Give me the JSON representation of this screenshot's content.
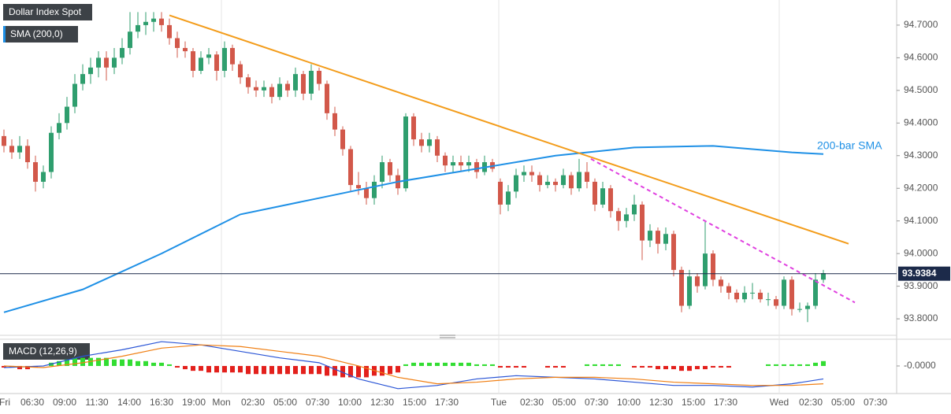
{
  "chart_data": {
    "type": "candlestick",
    "title": "Dollar Index Spot",
    "up_color": "#2f9e6e",
    "down_color": "#d2584a",
    "ylim": [
      93.764,
      94.777
    ],
    "yticks": [
      {
        "value": 94.7,
        "label": "94.7000"
      },
      {
        "value": 94.6,
        "label": "94.6000"
      },
      {
        "value": 94.5,
        "label": "94.5000"
      },
      {
        "value": 94.4,
        "label": "94.4000"
      },
      {
        "value": 94.3,
        "label": "94.3000"
      },
      {
        "value": 94.2,
        "label": "94.2000"
      },
      {
        "value": 94.1,
        "label": "94.1000"
      },
      {
        "value": 94.0,
        "label": "94.0000"
      },
      {
        "value": 93.9,
        "label": "93.9000"
      },
      {
        "value": 93.8,
        "label": "93.8000"
      }
    ],
    "last_price": {
      "value": 93.9384,
      "label": "93.9384"
    },
    "time_labels": [
      "Fri",
      "06:30",
      "09:00",
      "11:30",
      "14:00",
      "16:30",
      "19:00",
      "Mon",
      "02:30",
      "05:00",
      "07:30",
      "10:00",
      "12:30",
      "15:00",
      "17:30",
      "Tue",
      "02:30",
      "05:00",
      "07:30",
      "10:00",
      "12:30",
      "15:00",
      "17:30",
      "Wed",
      "02:30",
      "05:00",
      "07:30"
    ],
    "candles": [
      [
        94.36,
        94.38,
        94.31,
        94.33
      ],
      [
        94.33,
        94.35,
        94.29,
        94.31
      ],
      [
        94.31,
        94.36,
        94.29,
        94.33
      ],
      [
        94.33,
        94.35,
        94.26,
        94.28
      ],
      [
        94.28,
        94.3,
        94.19,
        94.22
      ],
      [
        94.22,
        94.27,
        94.2,
        94.25
      ],
      [
        94.25,
        94.39,
        94.23,
        94.37
      ],
      [
        94.37,
        94.43,
        94.35,
        94.4
      ],
      [
        94.4,
        94.48,
        94.38,
        94.45
      ],
      [
        94.45,
        94.55,
        94.43,
        94.52
      ],
      [
        94.52,
        94.58,
        94.5,
        94.55
      ],
      [
        94.55,
        94.6,
        94.52,
        94.57
      ],
      [
        94.57,
        94.62,
        94.54,
        94.6
      ],
      [
        94.6,
        94.62,
        94.53,
        94.57
      ],
      [
        94.57,
        94.63,
        94.55,
        94.6
      ],
      [
        94.6,
        94.66,
        94.58,
        94.63
      ],
      [
        94.63,
        94.74,
        94.61,
        94.68
      ],
      [
        94.68,
        94.74,
        94.66,
        94.7
      ],
      [
        94.7,
        94.74,
        94.67,
        94.71
      ],
      [
        94.71,
        94.74,
        94.68,
        94.72
      ],
      [
        94.72,
        94.74,
        94.68,
        94.7
      ],
      [
        94.7,
        94.72,
        94.64,
        94.66
      ],
      [
        94.66,
        94.68,
        94.6,
        94.63
      ],
      [
        94.63,
        94.65,
        94.6,
        94.62
      ],
      [
        94.62,
        94.63,
        94.54,
        94.56
      ],
      [
        94.56,
        94.62,
        94.55,
        94.6
      ],
      [
        94.6,
        94.63,
        94.58,
        94.61
      ],
      [
        94.61,
        94.62,
        94.53,
        94.56
      ],
      [
        94.56,
        94.65,
        94.54,
        94.63
      ],
      [
        94.63,
        94.64,
        94.56,
        94.58
      ],
      [
        94.58,
        94.59,
        94.52,
        94.54
      ],
      [
        94.54,
        94.55,
        94.49,
        94.51
      ],
      [
        94.51,
        94.53,
        94.48,
        94.5
      ],
      [
        94.5,
        94.53,
        94.48,
        94.51
      ],
      [
        94.51,
        94.52,
        94.46,
        94.48
      ],
      [
        94.48,
        94.54,
        94.47,
        94.52
      ],
      [
        94.52,
        94.53,
        94.48,
        94.5
      ],
      [
        94.5,
        94.57,
        94.48,
        94.55
      ],
      [
        94.55,
        94.56,
        94.47,
        94.49
      ],
      [
        94.49,
        94.58,
        94.47,
        94.56
      ],
      [
        94.56,
        94.57,
        94.5,
        94.52
      ],
      [
        94.52,
        94.53,
        94.41,
        94.43
      ],
      [
        94.43,
        94.45,
        94.36,
        94.38
      ],
      [
        94.38,
        94.39,
        94.3,
        94.32
      ],
      [
        94.32,
        94.33,
        94.19,
        94.21
      ],
      [
        94.21,
        94.25,
        94.18,
        94.2
      ],
      [
        94.2,
        94.22,
        94.15,
        94.17
      ],
      [
        94.17,
        94.24,
        94.15,
        94.22
      ],
      [
        94.22,
        94.3,
        94.2,
        94.28
      ],
      [
        94.28,
        94.29,
        94.22,
        94.24
      ],
      [
        94.24,
        94.26,
        94.18,
        94.2
      ],
      [
        94.2,
        94.43,
        94.19,
        94.42
      ],
      [
        94.42,
        94.43,
        94.33,
        94.35
      ],
      [
        94.35,
        94.37,
        94.31,
        94.33
      ],
      [
        94.33,
        94.37,
        94.31,
        94.35
      ],
      [
        94.35,
        94.36,
        94.28,
        94.3
      ],
      [
        94.3,
        94.31,
        94.25,
        94.27
      ],
      [
        94.27,
        94.3,
        94.25,
        94.28
      ],
      [
        94.28,
        94.3,
        94.25,
        94.27
      ],
      [
        94.27,
        94.3,
        94.25,
        94.28
      ],
      [
        94.28,
        94.29,
        94.23,
        94.25
      ],
      [
        94.25,
        94.3,
        94.24,
        94.28
      ],
      [
        94.28,
        94.29,
        94.25,
        94.26
      ],
      [
        94.22,
        94.23,
        94.12,
        94.15
      ],
      [
        94.15,
        94.21,
        94.13,
        94.19
      ],
      [
        94.19,
        94.26,
        94.17,
        94.24
      ],
      [
        94.24,
        94.27,
        94.22,
        94.25
      ],
      [
        94.25,
        94.27,
        94.22,
        94.24
      ],
      [
        94.24,
        94.25,
        94.19,
        94.21
      ],
      [
        94.21,
        94.24,
        94.2,
        94.22
      ],
      [
        94.22,
        94.23,
        94.19,
        94.21
      ],
      [
        94.21,
        94.26,
        94.2,
        94.24
      ],
      [
        94.24,
        94.25,
        94.18,
        94.2
      ],
      [
        94.2,
        94.29,
        94.19,
        94.25
      ],
      [
        94.25,
        94.28,
        94.2,
        94.22
      ],
      [
        94.22,
        94.23,
        94.13,
        94.15
      ],
      [
        94.15,
        94.22,
        94.14,
        94.2
      ],
      [
        94.2,
        94.21,
        94.11,
        94.13
      ],
      [
        94.13,
        94.14,
        94.07,
        94.1
      ],
      [
        94.1,
        94.14,
        94.08,
        94.12
      ],
      [
        94.12,
        94.18,
        94.1,
        94.15
      ],
      [
        94.15,
        94.16,
        93.98,
        94.04
      ],
      [
        94.04,
        94.09,
        94.02,
        94.07
      ],
      [
        94.07,
        94.08,
        94.0,
        94.03
      ],
      [
        94.03,
        94.08,
        94.01,
        94.06
      ],
      [
        94.06,
        94.07,
        93.93,
        93.95
      ],
      [
        93.95,
        93.96,
        93.82,
        93.84
      ],
      [
        93.84,
        93.95,
        93.83,
        93.93
      ],
      [
        93.93,
        93.94,
        93.88,
        93.9
      ],
      [
        93.9,
        94.1,
        93.89,
        94.0
      ],
      [
        94.0,
        94.01,
        93.9,
        93.92
      ],
      [
        93.92,
        93.93,
        93.88,
        93.9
      ],
      [
        93.9,
        93.91,
        93.86,
        93.88
      ],
      [
        93.88,
        93.89,
        93.85,
        93.86
      ],
      [
        93.86,
        93.9,
        93.85,
        93.88
      ],
      [
        93.88,
        93.91,
        93.86,
        93.88
      ],
      [
        93.88,
        93.89,
        93.85,
        93.86
      ],
      [
        93.86,
        93.88,
        93.84,
        93.86
      ],
      [
        93.86,
        93.87,
        93.83,
        93.84
      ],
      [
        93.84,
        93.93,
        93.83,
        93.92
      ],
      [
        93.92,
        93.93,
        93.81,
        93.83
      ],
      [
        93.83,
        93.85,
        93.82,
        93.83
      ],
      [
        93.83,
        93.85,
        93.79,
        93.84
      ],
      [
        93.84,
        93.94,
        93.83,
        93.92
      ],
      [
        93.92,
        93.95,
        93.91,
        93.94
      ]
    ],
    "sma": {
      "name": "SMA (200,0)",
      "label": "200-bar SMA",
      "color": "#1e90e6",
      "x": [
        0,
        10,
        20,
        30,
        40,
        50,
        60,
        70,
        80,
        90,
        100,
        104
      ],
      "values": [
        93.82,
        93.89,
        94.0,
        94.12,
        94.17,
        94.22,
        94.26,
        94.3,
        94.325,
        94.33,
        94.31,
        94.305
      ]
    },
    "trendlines": [
      {
        "color": "#f39c1a",
        "dash": false,
        "x": [
          21,
          107.2
        ],
        "values": [
          94.73,
          94.03
        ]
      },
      {
        "color": "#e040e0",
        "dash": true,
        "x": [
          74.5,
          108
        ],
        "values": [
          94.29,
          93.85
        ]
      }
    ],
    "macd": {
      "label": "MACD (12,26,9)",
      "ylim": [
        -0.17,
        0.16
      ],
      "yticks": [
        {
          "value": 0,
          "label": "-0.0000"
        }
      ],
      "up_color": "#33dd33",
      "down_color": "#e3201c",
      "histogram": [
        -0.01,
        -0.01,
        -0.02,
        -0.02,
        -0.01,
        0.0,
        0.02,
        0.03,
        0.04,
        0.05,
        0.05,
        0.05,
        0.05,
        0.05,
        0.04,
        0.04,
        0.04,
        0.03,
        0.03,
        0.02,
        0.02,
        0.01,
        -0.01,
        -0.02,
        -0.03,
        -0.03,
        -0.04,
        -0.04,
        -0.04,
        -0.04,
        -0.04,
        -0.05,
        -0.05,
        -0.05,
        -0.05,
        -0.05,
        -0.05,
        -0.05,
        -0.05,
        -0.05,
        -0.05,
        -0.06,
        -0.06,
        -0.07,
        -0.07,
        -0.07,
        -0.07,
        -0.06,
        -0.06,
        -0.05,
        -0.04,
        0.01,
        0.02,
        0.02,
        0.02,
        0.02,
        0.02,
        0.02,
        0.02,
        0.02,
        0.01,
        0.01,
        0.01,
        -0.01,
        -0.01,
        -0.01,
        -0.01,
        0.0,
        0.0,
        -0.01,
        -0.01,
        -0.01,
        0.0,
        0.0,
        0.01,
        0.01,
        0.01,
        0.01,
        0.01,
        0.0,
        -0.01,
        -0.01,
        -0.01,
        -0.02,
        -0.02,
        -0.02,
        -0.03,
        -0.03,
        -0.02,
        -0.02,
        -0.01,
        -0.01,
        -0.01,
        0.0,
        0.0,
        0.0,
        0.0,
        0.01,
        0.01,
        0.01,
        0.01,
        0.01,
        0.01,
        0.02,
        0.03
      ],
      "x": [
        0,
        5,
        10,
        15,
        20,
        25,
        30,
        35,
        40,
        45,
        50,
        55,
        60,
        65,
        70,
        75,
        80,
        85,
        90,
        95,
        100,
        104
      ],
      "series": [
        {
          "color": "#2a55d6",
          "values": [
            -0.01,
            0.0,
            0.06,
            0.1,
            0.15,
            0.13,
            0.09,
            0.05,
            0.02,
            -0.08,
            -0.14,
            -0.12,
            -0.08,
            -0.06,
            -0.07,
            -0.08,
            -0.1,
            -0.12,
            -0.12,
            -0.13,
            -0.11,
            -0.08
          ]
        },
        {
          "color": "#f07f13",
          "values": [
            0.0,
            -0.01,
            0.02,
            0.06,
            0.11,
            0.13,
            0.12,
            0.09,
            0.06,
            0.0,
            -0.07,
            -0.11,
            -0.1,
            -0.08,
            -0.07,
            -0.07,
            -0.08,
            -0.1,
            -0.11,
            -0.12,
            -0.12,
            -0.11
          ]
        }
      ]
    }
  }
}
